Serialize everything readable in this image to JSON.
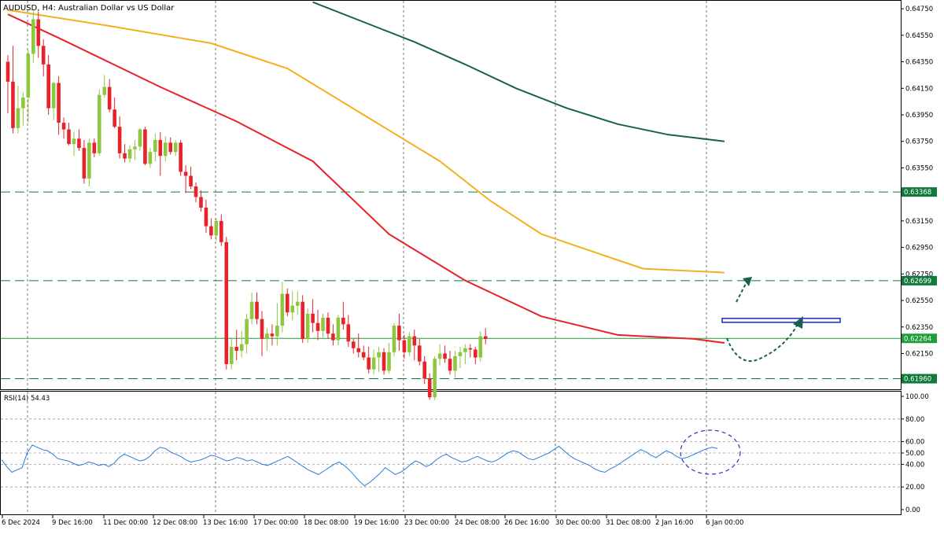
{
  "header": {
    "symbol": "AUDUSD",
    "timeframe": "H4:",
    "description": "Australian Dollar vs US Dollar"
  },
  "rsi_label": "RSI(14) 54.43",
  "colors": {
    "bull": "#8dc63f",
    "bear": "#e8222a",
    "ma50": "#e8222a",
    "ma100": "#f2b01e",
    "ma200": "#1b5f52",
    "level": "#0f7a3b",
    "current": "#1d9e3a",
    "rsi": "#2e7bd6",
    "target_box": "#2433c9",
    "arrow": "#1b5f52"
  },
  "price_axis": {
    "labels": [
      "0.64750",
      "0.64550",
      "0.64350",
      "0.64150",
      "0.63950",
      "0.63750",
      "0.63550",
      "0.63350",
      "0.63150",
      "0.62950",
      "0.62750",
      "0.62550",
      "0.62350",
      "0.62150",
      "0.61950"
    ]
  },
  "rsi_axis": {
    "labels": [
      "100.00",
      "80.00",
      "60.00",
      "50.00",
      "40.00",
      "20.00",
      "0.00"
    ]
  },
  "time_axis": {
    "labels": [
      "6 Dec 2024",
      "9 Dec 16:00",
      "11 Dec 00:00",
      "12 Dec 08:00",
      "13 Dec 16:00",
      "17 Dec 00:00",
      "18 Dec 08:00",
      "19 Dec 16:00",
      "23 Dec 00:00",
      "24 Dec 08:00",
      "26 Dec 16:00",
      "30 Dec 00:00",
      "31 Dec 08:00",
      "2 Jan 16:00",
      "6 Jan 00:00"
    ]
  },
  "chart_data": {
    "type": "candlestick",
    "timeframe": "H4",
    "y_range": [
      0.6188,
      0.6481
    ],
    "levels": [
      {
        "price": 0.63368,
        "label": "0.63368",
        "style": "dashed"
      },
      {
        "price": 0.62699,
        "label": "0.62699",
        "style": "dashed"
      },
      {
        "price": 0.62264,
        "label": "0.62264",
        "style": "solid",
        "current": true
      },
      {
        "price": 0.6196,
        "label": "0.61960",
        "style": "dashed"
      }
    ],
    "target_zone_price": 0.624,
    "candles": [
      [
        0.6435,
        0.644,
        0.6396,
        0.642
      ],
      [
        0.642,
        0.6447,
        0.6381,
        0.6385
      ],
      [
        0.6385,
        0.6417,
        0.6381,
        0.64
      ],
      [
        0.64,
        0.6412,
        0.6387,
        0.6408
      ],
      [
        0.6408,
        0.6444,
        0.6389,
        0.6441
      ],
      [
        0.6441,
        0.6474,
        0.6434,
        0.6467
      ],
      [
        0.6467,
        0.6473,
        0.6438,
        0.6447
      ],
      [
        0.6447,
        0.6452,
        0.6424,
        0.6433
      ],
      [
        0.6433,
        0.644,
        0.6395,
        0.64
      ],
      [
        0.64,
        0.642,
        0.6391,
        0.6419
      ],
      [
        0.6419,
        0.6424,
        0.638,
        0.6389
      ],
      [
        0.6389,
        0.6393,
        0.6377,
        0.6384
      ],
      [
        0.6384,
        0.6389,
        0.6372,
        0.6373
      ],
      [
        0.6373,
        0.6382,
        0.6364,
        0.6377
      ],
      [
        0.6377,
        0.6384,
        0.6368,
        0.637
      ],
      [
        0.637,
        0.6376,
        0.6343,
        0.6347
      ],
      [
        0.6347,
        0.6377,
        0.6341,
        0.6374
      ],
      [
        0.6374,
        0.6377,
        0.6363,
        0.6366
      ],
      [
        0.6366,
        0.6414,
        0.6364,
        0.641
      ],
      [
        0.641,
        0.6425,
        0.6408,
        0.6416
      ],
      [
        0.6416,
        0.6422,
        0.6397,
        0.6399
      ],
      [
        0.6399,
        0.6408,
        0.6385,
        0.6386
      ],
      [
        0.6386,
        0.6394,
        0.6362,
        0.6366
      ],
      [
        0.6366,
        0.6373,
        0.6359,
        0.6362
      ],
      [
        0.6362,
        0.6372,
        0.6359,
        0.6369
      ],
      [
        0.6369,
        0.6376,
        0.6361,
        0.6371
      ],
      [
        0.6371,
        0.6385,
        0.6368,
        0.6384
      ],
      [
        0.6384,
        0.6386,
        0.6357,
        0.6358
      ],
      [
        0.6358,
        0.637,
        0.6355,
        0.6367
      ],
      [
        0.6367,
        0.6381,
        0.636,
        0.6376
      ],
      [
        0.6376,
        0.6382,
        0.6349,
        0.6364
      ],
      [
        0.6364,
        0.6379,
        0.636,
        0.6374
      ],
      [
        0.6374,
        0.6378,
        0.6365,
        0.6367
      ],
      [
        0.6367,
        0.6376,
        0.6364,
        0.6374
      ],
      [
        0.6374,
        0.6376,
        0.6349,
        0.6352
      ],
      [
        0.6352,
        0.6357,
        0.6336,
        0.6349
      ],
      [
        0.6349,
        0.6356,
        0.6339,
        0.6341
      ],
      [
        0.6341,
        0.6344,
        0.6329,
        0.6333
      ],
      [
        0.6333,
        0.6338,
        0.6322,
        0.6325
      ],
      [
        0.6325,
        0.6331,
        0.6306,
        0.6311
      ],
      [
        0.6311,
        0.6317,
        0.6301,
        0.6304
      ],
      [
        0.6304,
        0.6317,
        0.63,
        0.6315
      ],
      [
        0.6315,
        0.632,
        0.6296,
        0.6299
      ],
      [
        0.6299,
        0.6303,
        0.6203,
        0.6207
      ],
      [
        0.6207,
        0.6226,
        0.6203,
        0.622
      ],
      [
        0.622,
        0.6233,
        0.621,
        0.6217
      ],
      [
        0.6217,
        0.6232,
        0.6212,
        0.6222
      ],
      [
        0.6222,
        0.6245,
        0.6215,
        0.6241
      ],
      [
        0.6241,
        0.6261,
        0.6237,
        0.6254
      ],
      [
        0.6254,
        0.6261,
        0.6237,
        0.6241
      ],
      [
        0.6241,
        0.6247,
        0.6213,
        0.6226
      ],
      [
        0.6226,
        0.6234,
        0.6217,
        0.623
      ],
      [
        0.623,
        0.6237,
        0.6221,
        0.6228
      ],
      [
        0.6228,
        0.6253,
        0.6221,
        0.6236
      ],
      [
        0.6236,
        0.6269,
        0.6231,
        0.626
      ],
      [
        0.626,
        0.6264,
        0.6243,
        0.6246
      ],
      [
        0.6246,
        0.6262,
        0.624,
        0.6251
      ],
      [
        0.6251,
        0.6262,
        0.6244,
        0.6254
      ],
      [
        0.6254,
        0.6259,
        0.6223,
        0.6226
      ],
      [
        0.6226,
        0.6249,
        0.6223,
        0.6245
      ],
      [
        0.6245,
        0.6256,
        0.6231,
        0.6238
      ],
      [
        0.6238,
        0.6248,
        0.6225,
        0.6232
      ],
      [
        0.6232,
        0.6245,
        0.6227,
        0.6242
      ],
      [
        0.6242,
        0.6246,
        0.6226,
        0.623
      ],
      [
        0.623,
        0.6237,
        0.6221,
        0.6225
      ],
      [
        0.6225,
        0.6244,
        0.6221,
        0.6242
      ],
      [
        0.6242,
        0.6254,
        0.6233,
        0.6237
      ],
      [
        0.6237,
        0.6244,
        0.622,
        0.6224
      ],
      [
        0.6224,
        0.6226,
        0.6215,
        0.6219
      ],
      [
        0.6219,
        0.623,
        0.6212,
        0.6216
      ],
      [
        0.6216,
        0.6221,
        0.621,
        0.6212
      ],
      [
        0.6212,
        0.622,
        0.62,
        0.6203
      ],
      [
        0.6203,
        0.6218,
        0.6199,
        0.6212
      ],
      [
        0.6212,
        0.622,
        0.6201,
        0.6216
      ],
      [
        0.6216,
        0.6219,
        0.6199,
        0.6202
      ],
      [
        0.6202,
        0.6223,
        0.62,
        0.6216
      ],
      [
        0.6216,
        0.6238,
        0.6213,
        0.6236
      ],
      [
        0.6236,
        0.6245,
        0.6217,
        0.6225
      ],
      [
        0.6225,
        0.6229,
        0.6211,
        0.6216
      ],
      [
        0.6216,
        0.6231,
        0.6213,
        0.6228
      ],
      [
        0.6228,
        0.6233,
        0.621,
        0.6221
      ],
      [
        0.6221,
        0.6226,
        0.6206,
        0.6209
      ],
      [
        0.6209,
        0.6213,
        0.6192,
        0.6196
      ],
      [
        0.6196,
        0.62,
        0.618,
        0.6182
      ],
      [
        0.6182,
        0.6213,
        0.618,
        0.6211
      ],
      [
        0.6211,
        0.6222,
        0.6206,
        0.6215
      ],
      [
        0.6215,
        0.6221,
        0.6208,
        0.6211
      ],
      [
        0.6211,
        0.6217,
        0.6199,
        0.6202
      ],
      [
        0.6202,
        0.6217,
        0.6197,
        0.6213
      ],
      [
        0.6213,
        0.622,
        0.6204,
        0.6216
      ],
      [
        0.6216,
        0.6222,
        0.6207,
        0.6219
      ],
      [
        0.6219,
        0.6222,
        0.6212,
        0.6218
      ],
      [
        0.6218,
        0.622,
        0.6207,
        0.6212
      ],
      [
        0.6212,
        0.6232,
        0.6209,
        0.6228
      ],
      [
        0.6228,
        0.6234,
        0.6222,
        0.6226
      ]
    ],
    "ma_50": [
      [
        0,
        0.64708
      ],
      [
        10,
        0.6453
      ],
      [
        30,
        0.6416
      ],
      [
        45,
        0.639
      ],
      [
        60,
        0.636
      ],
      [
        75,
        0.6305
      ],
      [
        90,
        0.627
      ],
      [
        105,
        0.6243
      ],
      [
        120,
        0.6229
      ],
      [
        135,
        0.6226
      ],
      [
        141,
        0.6223
      ]
    ],
    "ma_100": [
      [
        0,
        0.6474
      ],
      [
        20,
        0.6462
      ],
      [
        40,
        0.6449
      ],
      [
        55,
        0.643
      ],
      [
        70,
        0.6395
      ],
      [
        85,
        0.636
      ],
      [
        95,
        0.633
      ],
      [
        105,
        0.6305
      ],
      [
        115,
        0.6292
      ],
      [
        125,
        0.6279
      ],
      [
        141,
        0.6276
      ]
    ],
    "ma_200": [
      [
        60,
        0.648
      ],
      [
        70,
        0.6465
      ],
      [
        80,
        0.645
      ],
      [
        90,
        0.6433
      ],
      [
        100,
        0.6415
      ],
      [
        110,
        0.64
      ],
      [
        120,
        0.6388
      ],
      [
        130,
        0.638
      ],
      [
        141,
        0.6375
      ]
    ],
    "rsi": {
      "label": "RSI(14) 54.43",
      "value": 54.43,
      "y_range": [
        0,
        100
      ],
      "levels": [
        80,
        60,
        50,
        40,
        20
      ],
      "values": [
        44,
        38,
        33,
        35,
        37,
        50,
        57,
        55,
        53,
        52,
        49,
        45,
        44,
        43,
        41,
        39,
        40,
        42,
        41,
        39,
        40,
        38,
        41,
        46,
        49,
        47,
        45,
        43,
        44,
        47,
        52,
        55,
        54,
        51,
        49,
        47,
        44,
        42,
        43,
        44,
        46,
        48,
        47,
        45,
        43,
        44,
        46,
        45,
        43,
        44,
        42,
        40,
        39,
        41,
        43,
        45,
        47,
        44,
        41,
        38,
        35,
        33,
        31,
        34,
        37,
        40,
        42,
        39,
        35,
        30,
        25,
        21,
        24,
        28,
        32,
        37,
        34,
        31,
        33,
        36,
        40,
        43,
        41,
        38,
        40,
        44,
        47,
        49,
        46,
        44,
        42,
        43,
        45,
        47,
        45,
        43,
        42,
        44,
        47,
        50,
        52,
        51,
        48,
        45,
        44,
        46,
        48,
        50,
        53,
        56,
        52,
        48,
        45,
        43,
        41,
        39,
        36,
        34,
        33,
        36,
        38,
        41,
        44,
        47,
        50,
        53,
        51,
        48,
        46,
        49,
        52,
        50,
        47,
        45,
        46,
        48,
        50,
        52,
        54,
        55,
        54
      ]
    },
    "annotations": [
      {
        "type": "target_box",
        "price": 0.624
      },
      {
        "type": "arrow",
        "direction": "up"
      },
      {
        "type": "arrow",
        "direction": "curved-up"
      },
      {
        "type": "ellipse_highlight",
        "panel": "rsi"
      }
    ]
  }
}
